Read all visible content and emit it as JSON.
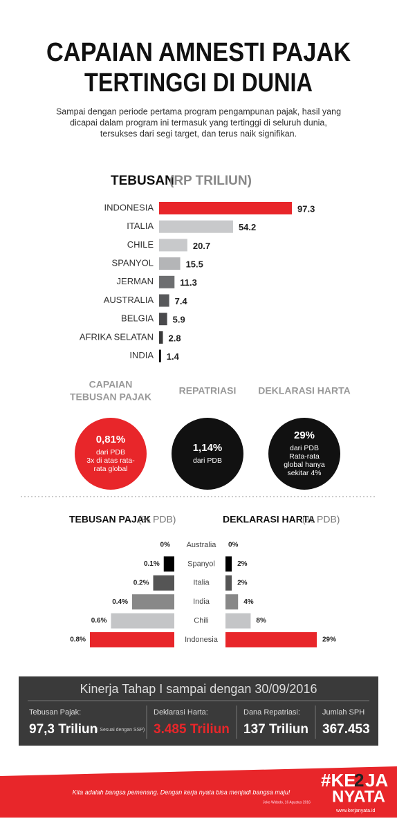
{
  "header": {
    "title": [
      "CAPAIAN AMNESTI PAJAK",
      "TERTINGGI DI DUNIA"
    ],
    "intro": [
      "Sampai dengan periode pertama program pengampunan pajak, hasil yang",
      "dicapai dalam program ini termasuk yang tertinggi di seluruh dunia,",
      "tersukses dari segi target, dan terus naik signifikan."
    ]
  },
  "chart_data": [
    {
      "type": "hbar",
      "title": "TEBUSAN",
      "unit": "(RP TRILIUN)",
      "categories": [
        "INDONESIA",
        "ITALIA",
        "CHILE",
        "SPANYOL",
        "JERMAN",
        "AUSTRALIA",
        "BELGIA",
        "AFRIKA SELATAN",
        "INDIA"
      ],
      "values": [
        97.3,
        54.2,
        20.7,
        15.5,
        11.3,
        7.4,
        5.9,
        2.8,
        1.4
      ],
      "colors": [
        "#e8262a",
        "#c8c9cb",
        "#c8c9cb",
        "#b4b5b7",
        "#6d6e70",
        "#58595b",
        "#4a4a4c",
        "#3a3a3a",
        "#000000"
      ]
    },
    {
      "type": "butterfly",
      "unit": "(% PDB)",
      "categories": [
        "Australia",
        "Spanyol",
        "Italia",
        "India",
        "Chili",
        "Indonesia"
      ],
      "colors": [
        "#000000",
        "#000000",
        "#555555",
        "#888888",
        "#c4c5c7",
        "#e8262a"
      ],
      "series": [
        {
          "name": "TEBUSAN PAJAK",
          "values": [
            0,
            0.1,
            0.2,
            0.4,
            0.6,
            0.8
          ],
          "value_labels": [
            "0%",
            "0.1%",
            "0.2%",
            "0.4%",
            "0.6%",
            "0.8%"
          ]
        },
        {
          "name": "DEKLARASI HARTA",
          "values": [
            0,
            2,
            2,
            4,
            8,
            29
          ],
          "value_labels": [
            "0%",
            "2%",
            "2%",
            "4%",
            "8%",
            "29%"
          ]
        }
      ]
    }
  ],
  "circles": [
    {
      "heading": [
        "CAPAIAN",
        "TEBUSAN PAJAK"
      ],
      "value": "0,81%",
      "lines": [
        "dari PDB",
        "3x di atas rata-",
        "rata global"
      ],
      "color": "#e8262a"
    },
    {
      "heading": [
        "REPATRIASI"
      ],
      "value": "1,14%",
      "lines": [
        "dari PDB"
      ],
      "color": "#111111"
    },
    {
      "heading": [
        "DEKLARASI HARTA"
      ],
      "value": "29%",
      "lines": [
        "dari PDB",
        "Rata-rata",
        "global hanya",
        "sekitar 4%"
      ],
      "color": "#111111"
    }
  ],
  "summary": {
    "title": "Kinerja Tahap I sampai dengan 30/09/2016",
    "items": [
      {
        "label": "Tebusan Pajak:",
        "value": "97,3 Triliun",
        "note": "( Sesuai dengan SSP)"
      },
      {
        "label": "Deklarasi Harta:",
        "value": "3.485 Triliun"
      },
      {
        "label": "Dana Repatriasi:",
        "value": "137 Triliun"
      },
      {
        "label": "Jumlah SPH",
        "value": "367.453"
      }
    ]
  },
  "footer": {
    "quote": "Kita adalah bangsa pemenang. Dengan kerja nyata bisa menjadi bangsa maju!",
    "attribution": "Joko Widodo, 16 Agustus 2016",
    "logo_a": "#KE",
    "logo_num": "2",
    "logo_b": "JA",
    "logo_c": "NYATA",
    "url": "www.kerjanyata.id"
  }
}
